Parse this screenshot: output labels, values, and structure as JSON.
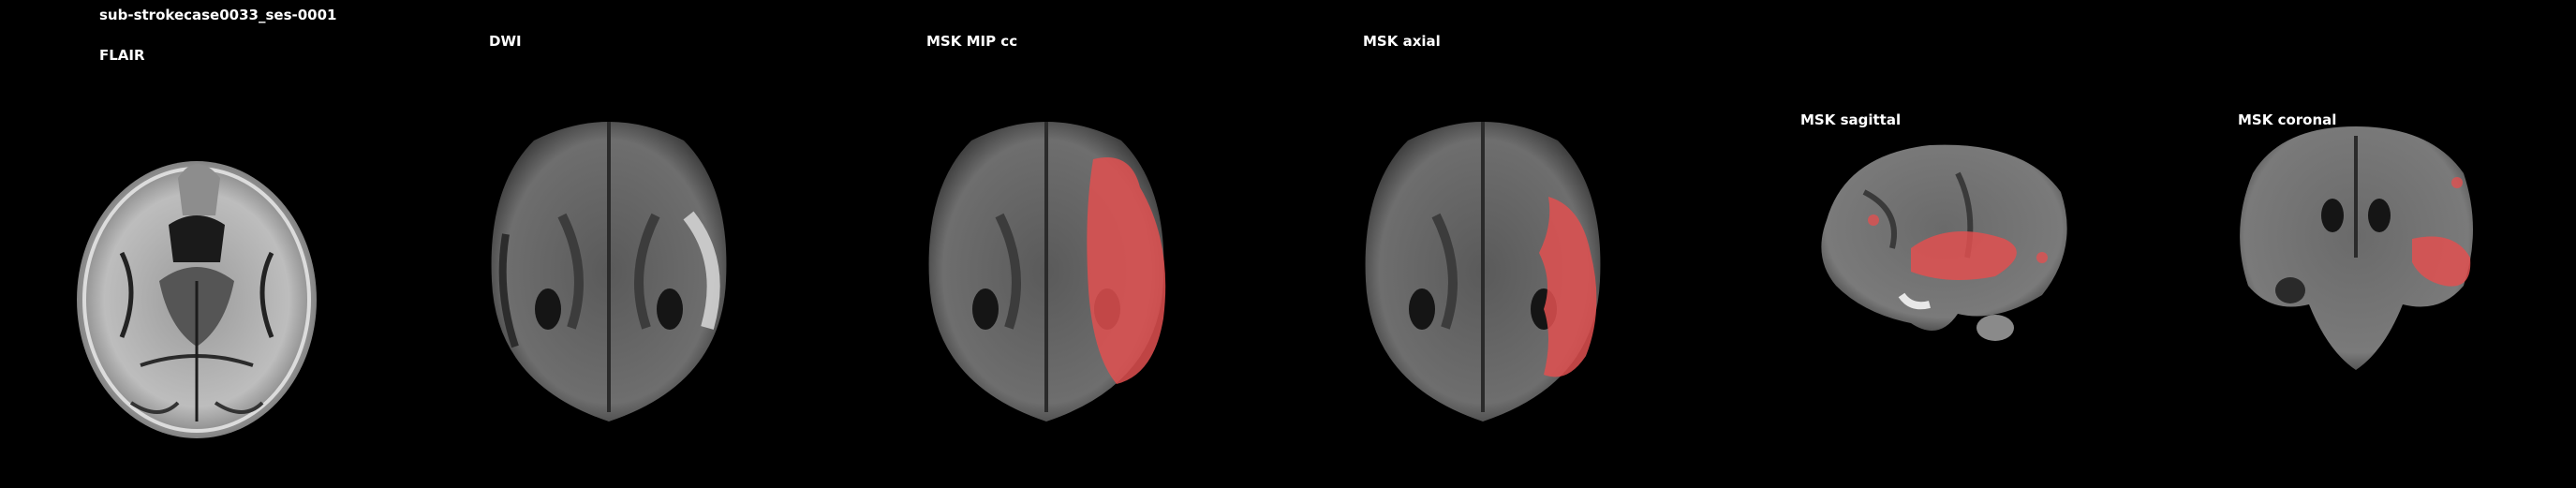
{
  "subject_title": "sub-strokecase0033_ses-0001",
  "panels": [
    {
      "id": "flair",
      "title": "FLAIR"
    },
    {
      "id": "dwi",
      "title": "DWI"
    },
    {
      "id": "msk_mip",
      "title": "MSK MIP cc"
    },
    {
      "id": "msk_axial",
      "title": "MSK axial"
    },
    {
      "id": "msk_sagittal",
      "title": "MSK sagittal"
    },
    {
      "id": "msk_coronal",
      "title": "MSK coronal"
    }
  ],
  "colors": {
    "background": "#000000",
    "text": "#ffffff",
    "mask": "#e05050"
  }
}
